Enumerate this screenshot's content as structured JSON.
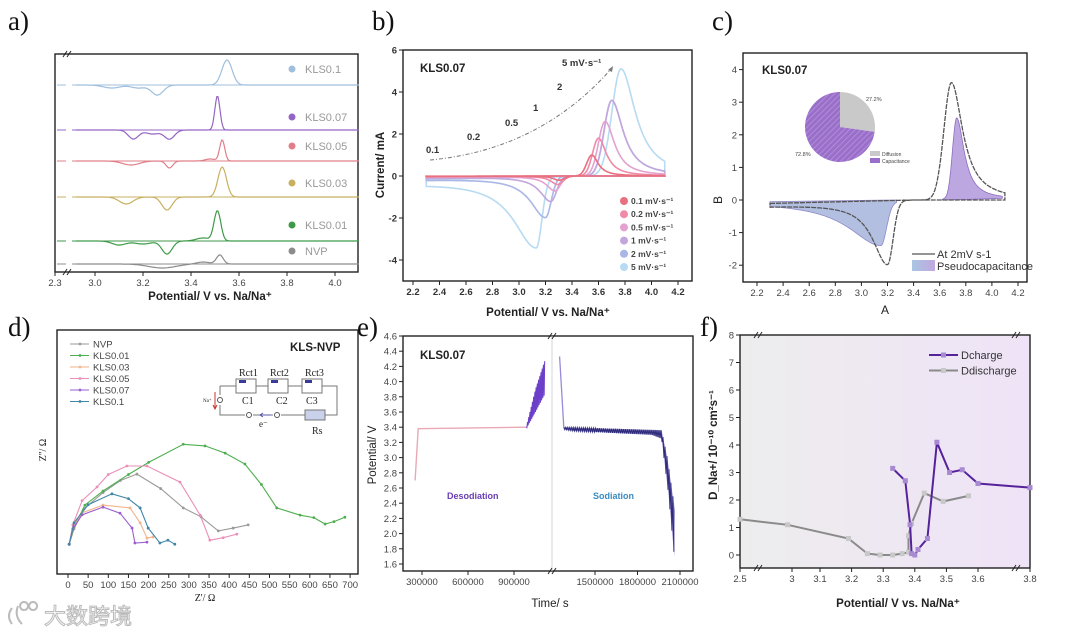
{
  "watermark": "大数跨境",
  "chart_data": [
    {
      "panel": "a)",
      "type": "line",
      "xlabel": "Potential/ V vs. Na/Na⁺",
      "ylabel": "",
      "xticks": [
        2.3,
        3.0,
        3.2,
        3.4,
        3.6,
        3.8,
        4.0
      ],
      "xtick_labels": [
        "2.3",
        "3.0",
        "3.2",
        "3.4",
        "3.6",
        "3.8",
        "4.0"
      ],
      "xlim": [
        2.3,
        4.1
      ],
      "y_units": "a.u. (stacked dQ/dV)",
      "series": [
        {
          "name": "KLS0.1",
          "color": "#9fbfdc",
          "peaks": [
            [
              3.55,
              25,
              0.03
            ],
            [
              3.07,
              -3,
              0.05
            ],
            [
              3.18,
              -3,
              0.04
            ],
            [
              3.26,
              -10,
              0.035
            ]
          ]
        },
        {
          "name": "KLS0.07",
          "color": "#9466c4",
          "peaks": [
            [
              3.51,
              34,
              0.015
            ],
            [
              3.16,
              -9,
              0.03
            ],
            [
              3.31,
              -9,
              0.03
            ],
            [
              3.24,
              -4,
              0.04
            ]
          ]
        },
        {
          "name": "KLS0.05",
          "color": "#e07f8a",
          "peaks": [
            [
              3.53,
              21,
              0.015
            ],
            [
              3.15,
              -4,
              0.05
            ],
            [
              3.31,
              -7,
              0.02
            ],
            [
              3.48,
              2,
              0.03
            ]
          ]
        },
        {
          "name": "KLS0.03",
          "color": "#c8b060",
          "peaks": [
            [
              3.53,
              30,
              0.025
            ],
            [
              3.13,
              -7,
              0.04
            ],
            [
              3.3,
              -13,
              0.03
            ]
          ]
        },
        {
          "name": "KLS0.01",
          "color": "#3f9a48",
          "peaks": [
            [
              3.51,
              30,
              0.02
            ],
            [
              3.1,
              -4,
              0.04
            ],
            [
              3.2,
              -3,
              0.05
            ],
            [
              3.3,
              -13,
              0.03
            ],
            [
              3.45,
              3,
              0.04
            ]
          ]
        },
        {
          "name": "NVP",
          "color": "#8c8c8c",
          "peaks": [
            [
              3.52,
              9,
              0.02
            ],
            [
              3.28,
              -4,
              0.08
            ],
            [
              3.45,
              2,
              0.04
            ]
          ]
        }
      ]
    },
    {
      "panel": "b)",
      "type": "line",
      "title": "KLS0.07",
      "xlabel": "Potential/ V vs. Na/Na⁺",
      "ylabel": "Current/ mA",
      "xticks": [
        2.2,
        2.4,
        2.6,
        2.8,
        3.0,
        3.2,
        3.4,
        3.6,
        3.8,
        4.0,
        4.2
      ],
      "xtick_labels": [
        "2.2",
        "2.4",
        "2.6",
        "2.8",
        "3.0",
        "3.2",
        "3.4",
        "3.6",
        "3.8",
        "4.0",
        "4.2"
      ],
      "yticks": [
        6,
        4,
        2,
        0,
        -2,
        -4
      ],
      "ytick_labels": [
        "6",
        "4",
        "2",
        "0",
        "-2",
        "-4"
      ],
      "xlim": [
        2.2,
        4.2
      ],
      "ylim": [
        -5,
        6
      ],
      "annotations": [
        "0.1",
        "0.2",
        "0.5",
        "1",
        "2",
        "5 mV·s⁻¹"
      ],
      "series": [
        {
          "name": "0.1 mV·s⁻¹",
          "color": "#e8707f",
          "anodic_peak": [
            3.55,
            1.0
          ],
          "cathodic_peak": [
            3.3,
            -0.2
          ]
        },
        {
          "name": "0.2 mV·s⁻¹",
          "color": "#f08aa6",
          "anodic_peak": [
            3.6,
            1.8
          ],
          "cathodic_peak": [
            3.29,
            -0.4
          ]
        },
        {
          "name": "0.5 mV·s⁻¹",
          "color": "#e3a2cf",
          "anodic_peak": [
            3.65,
            2.6
          ],
          "cathodic_peak": [
            3.27,
            -0.7
          ]
        },
        {
          "name": "1    mV·s⁻¹",
          "color": "#c3a6dc",
          "anodic_peak": [
            3.7,
            3.6
          ],
          "cathodic_peak": [
            3.24,
            -1.2
          ]
        },
        {
          "name": "2    mV·s⁻¹",
          "color": "#a9b6e6",
          "anodic_peak": [
            3.7,
            3.6
          ],
          "cathodic_peak": [
            3.2,
            -1.95
          ]
        },
        {
          "name": "5    mV·s⁻¹",
          "color": "#b7dbf2",
          "anodic_peak": [
            3.77,
            5.1
          ],
          "cathodic_peak": [
            3.13,
            -3.35
          ]
        }
      ]
    },
    {
      "panel": "c)",
      "type": "area",
      "title": "KLS0.07",
      "xlabel": "A",
      "ylabel": "B",
      "xticks": [
        2.2,
        2.4,
        2.6,
        2.8,
        3.0,
        3.2,
        3.4,
        3.6,
        3.8,
        4.0,
        4.2
      ],
      "xtick_labels": [
        "2.2",
        "2.4",
        "2.6",
        "2.8",
        "3.0",
        "3.2",
        "3.4",
        "3.6",
        "3.8",
        "4.0",
        "4.2"
      ],
      "yticks": [
        4,
        3,
        2,
        1,
        0,
        -1,
        -2
      ],
      "ytick_labels": [
        "4",
        "3",
        "2",
        "1",
        "0",
        "-1",
        "-2"
      ],
      "xlim": [
        2.2,
        4.2
      ],
      "ylim": [
        -2.5,
        4.4
      ],
      "series": [
        {
          "name": "At 2mV s-1",
          "color": "#555555",
          "anodic_peak": [
            3.69,
            3.6
          ],
          "cathodic_peak": [
            3.2,
            -1.95
          ]
        },
        {
          "name": "Pseudocapacitance",
          "color": "#b9a6dc",
          "anodic_peak": [
            3.73,
            2.5
          ],
          "cathodic_peak": [
            3.15,
            -1.35
          ]
        }
      ],
      "inset_pie": {
        "type": "pie",
        "slices": [
          {
            "label": "Diffusion",
            "value": 27.2,
            "value_label": "27.2%",
            "color": "#c9c9c9"
          },
          {
            "label": "Capacitance",
            "value": 72.8,
            "value_label": "72.8%",
            "color": "#9a6fca"
          }
        ]
      }
    },
    {
      "panel": "d)",
      "type": "scatter",
      "title": "KLS-NVP",
      "xlabel": "Z'/ Ω",
      "ylabel": "Z''/ Ω",
      "xticks": [
        0,
        50,
        100,
        150,
        200,
        250,
        300,
        350,
        400,
        450,
        500,
        550,
        600,
        650,
        700
      ],
      "xtick_labels": [
        "0",
        "50",
        "100",
        "150",
        "200",
        "250",
        "300",
        "350",
        "400",
        "450",
        "500",
        "550",
        "600",
        "650",
        "700"
      ],
      "xlim": [
        0,
        720
      ],
      "circuit_labels": {
        "r1": "Rct1",
        "r2": "Rct2",
        "r3": "Rct3",
        "c1": "C1",
        "c2": "C2",
        "c3": "C3",
        "rs": "Rs",
        "na": "Na⁺",
        "e": "e⁻"
      },
      "series": [
        {
          "name": "NVP",
          "color": "#9a9a9a",
          "points": [
            [
              3,
              2
            ],
            [
              15,
              40
            ],
            [
              40,
              90
            ],
            [
              87,
              130
            ],
            [
              130,
              160
            ],
            [
              171,
              176
            ],
            [
              230,
              140
            ],
            [
              286,
              92
            ],
            [
              330,
              70
            ],
            [
              373,
              35
            ],
            [
              410,
              42
            ],
            [
              447,
              50
            ]
          ]
        },
        {
          "name": "KLS0.01",
          "color": "#4fae4f",
          "points": [
            [
              3,
              2
            ],
            [
              15,
              45
            ],
            [
              42,
              99
            ],
            [
              87,
              134
            ],
            [
              150,
              175
            ],
            [
              200,
              205
            ],
            [
              286,
              250
            ],
            [
              340,
              246
            ],
            [
              390,
              228
            ],
            [
              439,
              201
            ],
            [
              480,
              150
            ],
            [
              518,
              92
            ],
            [
              576,
              74
            ],
            [
              610,
              68
            ],
            [
              638,
              52
            ],
            [
              660,
              58
            ],
            [
              687,
              69
            ]
          ]
        },
        {
          "name": "KLS0.03",
          "color": "#f2b48a",
          "points": [
            [
              3,
              2
            ],
            [
              12,
              40
            ],
            [
              35,
              80
            ],
            [
              87,
              99
            ],
            [
              154,
              92
            ],
            [
              179,
              55
            ],
            [
              196,
              17
            ],
            [
              211,
              20
            ]
          ]
        },
        {
          "name": "KLS0.05",
          "color": "#ea8fb8",
          "points": [
            [
              3,
              2
            ],
            [
              12,
              50
            ],
            [
              35,
              110
            ],
            [
              72,
              144
            ],
            [
              100,
              175
            ],
            [
              146,
              196
            ],
            [
              196,
              196
            ],
            [
              278,
              156
            ],
            [
              328,
              74
            ],
            [
              352,
              12
            ],
            [
              385,
              18
            ],
            [
              419,
              27
            ]
          ]
        },
        {
          "name": "KLS0.07",
          "color": "#9b5fd0",
          "points": [
            [
              3,
              2
            ],
            [
              12,
              40
            ],
            [
              35,
              75
            ],
            [
              87,
              94
            ],
            [
              129,
              79
            ],
            [
              159,
              42
            ],
            [
              166,
              5
            ],
            [
              196,
              7
            ]
          ]
        },
        {
          "name": "KLS0.1",
          "color": "#3f86a8",
          "points": [
            [
              3,
              2
            ],
            [
              15,
              55
            ],
            [
              50,
              100
            ],
            [
              109,
              127
            ],
            [
              150,
              115
            ],
            [
              179,
              92
            ],
            [
              199,
              42
            ],
            [
              228,
              5
            ],
            [
              248,
              12
            ],
            [
              265,
              2
            ]
          ]
        }
      ]
    },
    {
      "panel": "e)",
      "type": "line",
      "title": "KLS0.07",
      "xlabel": "Time/ s",
      "ylabel": "Potential/ V",
      "xticks": [
        300000,
        600000,
        900000,
        1500000,
        1800000,
        2100000
      ],
      "xtick_labels": [
        "300000",
        "600000",
        "900000",
        "1500000",
        "1800000",
        "2100000"
      ],
      "yticks": [
        4.6,
        4.4,
        4.2,
        4.0,
        3.8,
        3.6,
        3.4,
        3.2,
        3.0,
        2.8,
        2.6,
        2.4,
        2.2,
        2.0,
        1.8,
        1.6
      ],
      "ytick_labels": [
        "4.6",
        "4.4",
        "4.2",
        "4.0",
        "3.8",
        "3.6",
        "3.4",
        "3.2",
        "3.0",
        "2.8",
        "2.6",
        "2.4",
        "2.2",
        "2.0",
        "1.8",
        "1.6"
      ],
      "ylim": [
        1.5,
        4.6
      ],
      "region_labels": {
        "desodiation": "Desodiation",
        "sodiation": "Sodiation"
      },
      "charge_upper": [
        [
          255000,
          2.7
        ],
        [
          275000,
          3.38
        ],
        [
          980000,
          3.4
        ],
        [
          1040000,
          3.9
        ],
        [
          1100000,
          4.27
        ]
      ],
      "charge_lower": [
        [
          980000,
          3.38
        ],
        [
          1040000,
          3.6
        ],
        [
          1100000,
          3.83
        ]
      ],
      "discharge_upper": [
        [
          1250000,
          4.33
        ],
        [
          1280000,
          3.4
        ],
        [
          1970000,
          3.36
        ],
        [
          2010000,
          3.0
        ],
        [
          2065000,
          2.3
        ]
      ],
      "discharge_lower": [
        [
          1250000,
          4.33
        ],
        [
          1280000,
          3.37
        ],
        [
          1350000,
          3.35
        ],
        [
          1900000,
          3.3
        ],
        [
          1970000,
          3.25
        ],
        [
          2020000,
          2.5
        ],
        [
          2060000,
          1.7
        ]
      ]
    },
    {
      "panel": "f)",
      "type": "line",
      "xlabel": "Potential/ V vs. Na/Na⁺",
      "ylabel": "D_Na+/ 10⁻¹⁰ cm²s⁻¹",
      "xticks": [
        2.5,
        3.0,
        3.1,
        3.2,
        3.3,
        3.4,
        3.5,
        3.6,
        3.8
      ],
      "xtick_labels": [
        "2.5",
        "3",
        "3.1",
        "3.2",
        "3.3",
        "3.4",
        "3.5",
        "3.6",
        "3.8"
      ],
      "yticks": [
        8,
        7,
        6,
        5,
        4,
        3,
        2,
        1,
        0
      ],
      "ytick_labels": [
        "8",
        "7",
        "6",
        "5",
        "4",
        "3",
        "2",
        "1",
        "0"
      ],
      "ylim": [
        -0.5,
        8
      ],
      "series": [
        {
          "name": "Dcharge",
          "color": "#55229a",
          "marker": "#a88ad2",
          "points": [
            [
              3.33,
              3.15
            ],
            [
              3.37,
              2.7
            ],
            [
              3.385,
              1.1
            ],
            [
              3.39,
              0.05
            ],
            [
              3.4,
              0
            ],
            [
              3.41,
              0.2
            ],
            [
              3.44,
              0.6
            ],
            [
              3.47,
              4.1
            ],
            [
              3.51,
              3.0
            ],
            [
              3.55,
              3.1
            ],
            [
              3.6,
              2.6
            ],
            [
              3.8,
              2.45
            ]
          ]
        },
        {
          "name": "Ddischarge",
          "color": "#8a8a8a",
          "marker": "#c8c8c8",
          "points": [
            [
              2.5,
              1.3
            ],
            [
              2.95,
              1.1
            ],
            [
              3.19,
              0.6
            ],
            [
              3.25,
              0.05
            ],
            [
              3.29,
              0
            ],
            [
              3.33,
              0
            ],
            [
              3.36,
              0.05
            ],
            [
              3.38,
              0.1
            ],
            [
              3.38,
              0.7
            ],
            [
              3.39,
              1.15
            ],
            [
              3.43,
              2.25
            ],
            [
              3.49,
              1.95
            ],
            [
              3.57,
              2.15
            ]
          ]
        }
      ]
    }
  ]
}
